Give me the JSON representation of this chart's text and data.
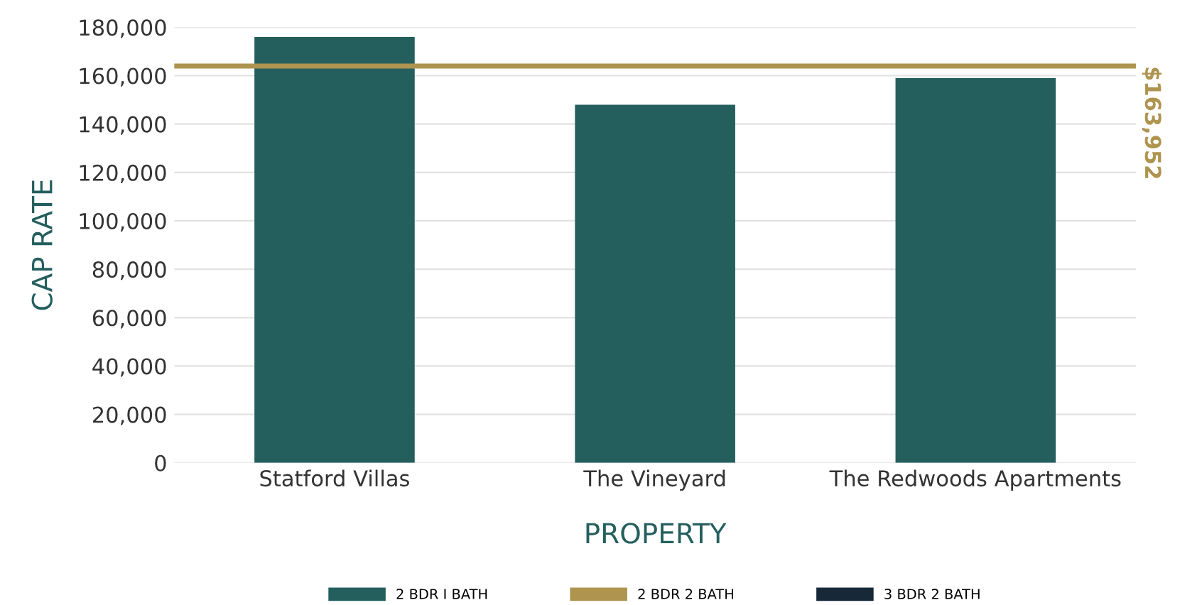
{
  "chart_data": {
    "type": "bar",
    "xlabel": "PROPERTY",
    "ylabel": "CAP RATE",
    "categories": [
      "Statford Villas",
      "The Vineyard",
      "The Redwoods Apartments"
    ],
    "series": [
      {
        "name": "2 BDR I BATH",
        "color": "#245f5e",
        "values": [
          176000,
          148000,
          159000
        ]
      },
      {
        "name": "2 BDR 2 BATH",
        "color": "#ae944f",
        "values": [
          null,
          null,
          null
        ]
      },
      {
        "name": "3 BDR 2 BATH",
        "color": "#172838",
        "values": [
          null,
          null,
          null
        ]
      }
    ],
    "ylim": [
      0,
      180000
    ],
    "yticks": [
      {
        "value": 0,
        "label": "0"
      },
      {
        "value": 20000,
        "label": "20,000"
      },
      {
        "value": 40000,
        "label": "40,000"
      },
      {
        "value": 60000,
        "label": "60,000"
      },
      {
        "value": 80000,
        "label": "80,000"
      },
      {
        "value": 100000,
        "label": "100,000"
      },
      {
        "value": 120000,
        "label": "120,000"
      },
      {
        "value": 140000,
        "label": "140,000"
      },
      {
        "value": 160000,
        "label": "160,000"
      },
      {
        "value": 180000,
        "label": "180,000"
      }
    ],
    "ref_lines": [
      {
        "axis": "y",
        "value": 163952,
        "label": "$163,952",
        "color": "#ae944f"
      }
    ],
    "grid": "y",
    "legend": "bottom"
  }
}
